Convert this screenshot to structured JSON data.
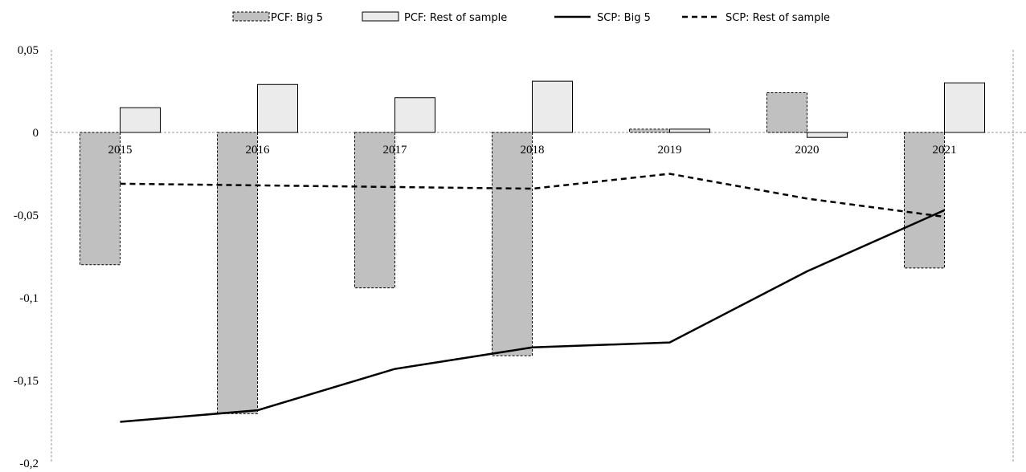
{
  "chart_data": {
    "type": "bar",
    "categories": [
      "2015",
      "2016",
      "2017",
      "2018",
      "2019",
      "2020",
      "2021"
    ],
    "series": [
      {
        "name": "PCF: Big 5",
        "kind": "bar",
        "style": "dashed-border",
        "color": "#c0c0c0",
        "values": [
          -0.08,
          -0.17,
          -0.094,
          -0.135,
          0.002,
          0.024,
          -0.082
        ]
      },
      {
        "name": "PCF: Rest of sample",
        "kind": "bar",
        "style": "solid-border",
        "color": "#ebebeb",
        "values": [
          0.015,
          0.029,
          0.021,
          0.031,
          0.002,
          -0.003,
          0.03
        ]
      },
      {
        "name": "SCP: Big 5",
        "kind": "line",
        "style": "solid",
        "color": "#000000",
        "values": [
          -0.175,
          -0.168,
          -0.143,
          -0.13,
          -0.127,
          -0.084,
          -0.047
        ]
      },
      {
        "name": "SCP: Rest of sample",
        "kind": "line",
        "style": "dashed",
        "color": "#000000",
        "values": [
          -0.031,
          -0.032,
          -0.033,
          -0.034,
          -0.025,
          -0.04,
          -0.051
        ]
      }
    ],
    "yticks": [
      "0,05",
      "0",
      "-0,05",
      "-0,1",
      "-0,15",
      "-0,2"
    ],
    "ylim": [
      -0.2,
      0.05
    ],
    "legend_position": "top",
    "grid": false
  }
}
